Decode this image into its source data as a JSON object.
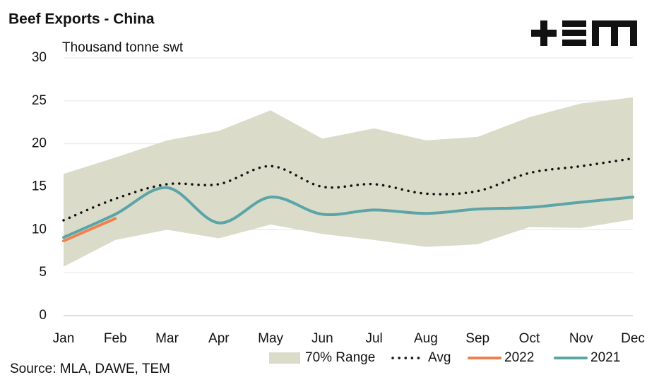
{
  "chart_data": {
    "type": "line",
    "title": "Beef Exports - China",
    "y_label": "Thousand tonne swt",
    "source": "Source: MLA, DAWE, TEM",
    "categories": [
      "Jan",
      "Feb",
      "Mar",
      "Apr",
      "May",
      "Jun",
      "Jul",
      "Aug",
      "Sep",
      "Oct",
      "Nov",
      "Dec"
    ],
    "ylim": [
      0,
      30
    ],
    "yticks": [
      0,
      5,
      10,
      15,
      20,
      25,
      30
    ],
    "grid": true,
    "range": {
      "name": "70% Range",
      "color": "#dadcc9",
      "high": [
        16.5,
        18.4,
        20.4,
        21.5,
        23.9,
        20.6,
        21.8,
        20.4,
        20.8,
        23.1,
        24.7,
        25.4
      ],
      "low": [
        5.7,
        8.8,
        10.0,
        9.0,
        10.6,
        9.5,
        8.8,
        8.0,
        8.3,
        10.3,
        10.2,
        11.2
      ]
    },
    "series": [
      {
        "name": "Avg",
        "color": "#111111",
        "style": "dotted",
        "values": [
          11.1,
          13.6,
          15.3,
          15.3,
          17.4,
          15.0,
          15.3,
          14.2,
          14.5,
          16.6,
          17.4,
          18.3
        ]
      },
      {
        "name": "2022",
        "color": "#f0804f",
        "style": "solid",
        "values": [
          8.7,
          11.3,
          null,
          null,
          null,
          null,
          null,
          null,
          null,
          null,
          null,
          null
        ]
      },
      {
        "name": "2021",
        "color": "#5ba4a8",
        "style": "solid",
        "values": [
          9.1,
          11.8,
          14.9,
          10.8,
          13.8,
          11.8,
          12.3,
          11.9,
          12.4,
          12.6,
          13.2,
          13.8
        ]
      }
    ]
  }
}
